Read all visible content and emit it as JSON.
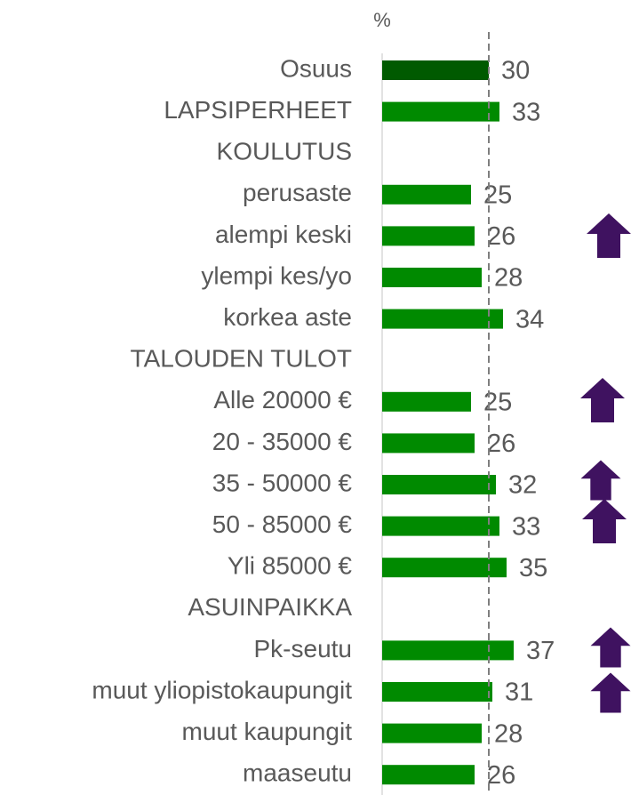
{
  "chart_data": {
    "type": "bar",
    "orientation": "horizontal",
    "x_label": "%",
    "categories": [
      "Osuus",
      "LAPSIPERHEET",
      "KOULUTUS",
      "perusaste",
      "alempi keski",
      "ylempi kes/yo",
      "korkea aste",
      "TALOUDEN TULOT",
      "Alle 20000 €",
      "20 - 35000 €",
      "35 - 50000 €",
      "50 - 85000 €",
      "Yli 85000 €",
      "ASUINPAIKKA",
      "Pk-seutu",
      "muut yliopistokaupungit",
      "muut kaupungit",
      "maaseutu"
    ],
    "values": [
      30,
      33,
      null,
      25,
      26,
      28,
      34,
      null,
      25,
      26,
      32,
      33,
      35,
      null,
      37,
      31,
      28,
      26
    ],
    "colors": [
      "#005a00",
      "#008a00",
      null,
      "#008a00",
      "#008a00",
      "#008a00",
      "#008a00",
      null,
      "#008a00",
      "#008a00",
      "#008a00",
      "#008a00",
      "#008a00",
      null,
      "#008a00",
      "#008a00",
      "#008a00",
      "#008a00"
    ],
    "reference_line": 30,
    "xlim": [
      0,
      70
    ]
  }
}
